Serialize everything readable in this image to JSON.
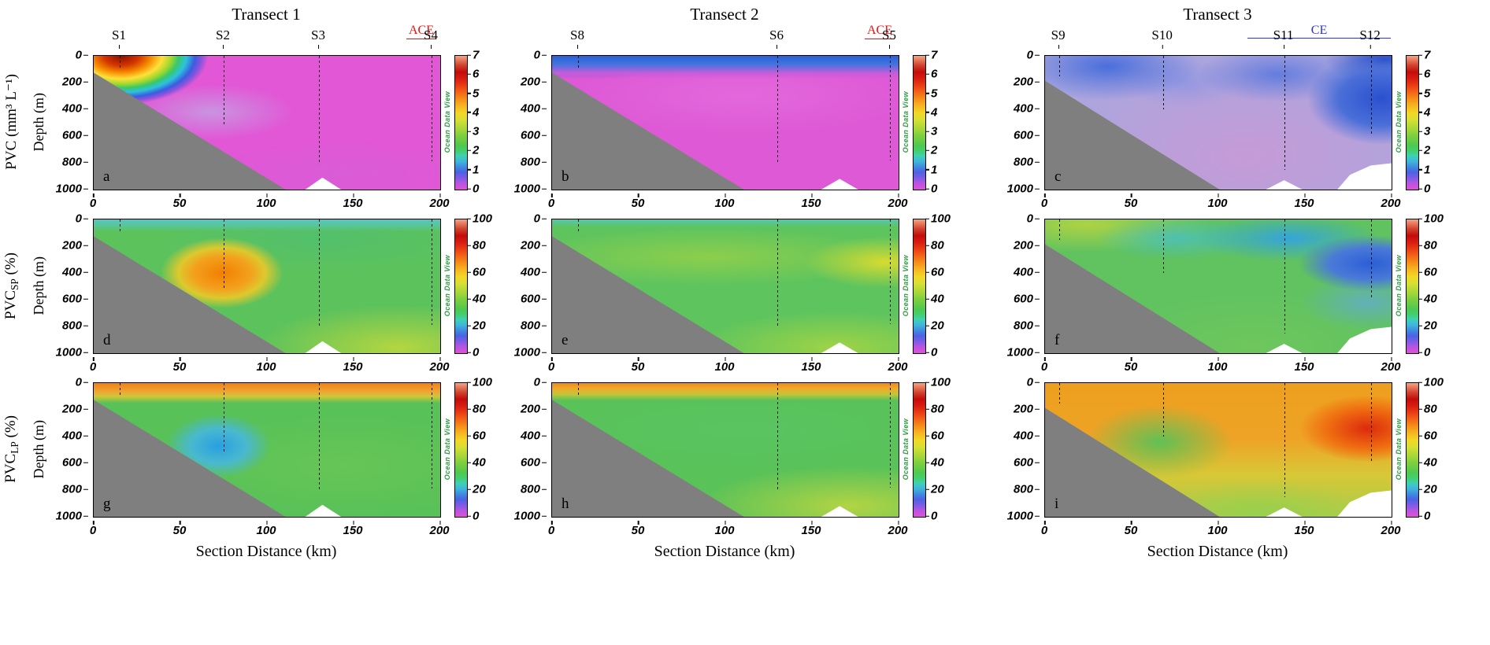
{
  "watermark": "Ocean Data View",
  "panel_letters": [
    "a",
    "b",
    "c",
    "d",
    "e",
    "f",
    "g",
    "h",
    "i"
  ],
  "axes": {
    "x_label": "Section Distance (km)",
    "x_ticks": [
      "0",
      "50",
      "100",
      "150",
      "200"
    ],
    "depth_label": "Depth (m)",
    "depth_ticks": [
      "0",
      "200",
      "400",
      "600",
      "800",
      "1000"
    ],
    "x_range_km": [
      0,
      200
    ],
    "depth_range_m": [
      0,
      1000
    ]
  },
  "rows": [
    {
      "label": "PVC (mm³ L⁻¹)",
      "colorbar_min": 0,
      "colorbar_max": 7,
      "colorbar_ticks": [
        "7",
        "6",
        "5",
        "4",
        "3",
        "2",
        "1",
        "0"
      ]
    },
    {
      "label_prefix": "PVC",
      "label_sub": "SP",
      "label_suffix": " (%)",
      "colorbar_min": 0,
      "colorbar_max": 100,
      "colorbar_ticks": [
        "100",
        "80",
        "60",
        "40",
        "20",
        "0"
      ]
    },
    {
      "label_prefix": "PVC",
      "label_sub": "LP",
      "label_suffix": " (%)",
      "colorbar_min": 0,
      "colorbar_max": 100,
      "colorbar_ticks": [
        "100",
        "80",
        "60",
        "40",
        "20",
        "0"
      ]
    }
  ],
  "columns": [
    {
      "title": "Transect 1",
      "eddy": {
        "label": "ACE",
        "color": "#ee1111"
      },
      "stations": [
        {
          "label": "S1",
          "km": 15,
          "cast_depth_m": 100
        },
        {
          "label": "S2",
          "km": 75,
          "cast_depth_m": 530
        },
        {
          "label": "S3",
          "km": 130,
          "cast_depth_m": 800
        },
        {
          "label": "S4",
          "km": 195,
          "cast_depth_m": 790
        }
      ]
    },
    {
      "title": "Transect 2",
      "eddy": {
        "label": "ACE",
        "color": "#ee1111"
      },
      "stations": [
        {
          "label": "S8",
          "km": 15,
          "cast_depth_m": 100
        },
        {
          "label": "S6",
          "km": 130,
          "cast_depth_m": 800
        },
        {
          "label": "S5",
          "km": 195,
          "cast_depth_m": 780
        }
      ]
    },
    {
      "title": "Transect 3",
      "eddy": {
        "label": "CE",
        "color": "#2a35cc"
      },
      "stations": [
        {
          "label": "S9",
          "km": 8,
          "cast_depth_m": 150
        },
        {
          "label": "S10",
          "km": 68,
          "cast_depth_m": 400
        },
        {
          "label": "S11",
          "km": 138,
          "cast_depth_m": 850
        },
        {
          "label": "S12",
          "km": 188,
          "cast_depth_m": 590
        }
      ]
    }
  ],
  "annotations": [
    {
      "text": "ACE",
      "color": "#ee1111",
      "transect": "Transect 1",
      "location": "above S4"
    },
    {
      "text": "ACE",
      "color": "#ee1111",
      "transect": "Transect 2",
      "location": "above S5"
    },
    {
      "text": "CE",
      "color": "#2a35cc",
      "transect": "Transect 3",
      "location": "spanning S11–S12"
    }
  ],
  "chart_data": {
    "type": "heatmap",
    "note": "Ocean Data View style filled-contour sections; values estimated from color field; null = below seafloor (gray mask)",
    "x_km": [
      0,
      50,
      100,
      150,
      200
    ],
    "depth_m": [
      0,
      250,
      500,
      750,
      1000
    ],
    "colormap": "ODV rainbow: magenta(low) -> blue -> cyan -> green -> yellow -> orange -> red -> pale salmon(high)",
    "panels": [
      {
        "id": "a",
        "transect": "Transect 1",
        "variable": "PVC (mm³ L⁻¹)",
        "scale": [
          0,
          7
        ],
        "values": [
          [
            5.5,
            0.8,
            0.7,
            0.7,
            0.7
          ],
          [
            null,
            0.9,
            0.6,
            0.6,
            0.6
          ],
          [
            null,
            1.1,
            0.6,
            0.6,
            0.6
          ],
          [
            null,
            null,
            0.6,
            0.6,
            0.6
          ],
          [
            null,
            null,
            null,
            0.6,
            0.6
          ]
        ],
        "features": "strong surface PVC maximum (~6) at S1 shelf; uniform low (~0.6) magenta background elsewhere"
      },
      {
        "id": "b",
        "transect": "Transect 2",
        "variable": "PVC (mm³ L⁻¹)",
        "scale": [
          0,
          7
        ],
        "values": [
          [
            2.0,
            1.5,
            1.2,
            1.0,
            1.5
          ],
          [
            null,
            0.7,
            0.7,
            0.7,
            0.8
          ],
          [
            null,
            0.6,
            0.6,
            0.6,
            0.7
          ],
          [
            null,
            null,
            0.6,
            0.6,
            0.7
          ],
          [
            null,
            null,
            null,
            0.6,
            0.6
          ]
        ],
        "features": "blue surface band (~1-2) in upper 100 m; low (~0.6) below"
      },
      {
        "id": "c",
        "transect": "Transect 3",
        "variable": "PVC (mm³ L⁻¹)",
        "scale": [
          0,
          7
        ],
        "values": [
          [
            2.2,
            1.5,
            1.0,
            1.2,
            2.2
          ],
          [
            null,
            1.6,
            0.9,
            1.0,
            2.4
          ],
          [
            null,
            1.1,
            0.8,
            0.9,
            1.8
          ],
          [
            null,
            null,
            0.8,
            0.9,
            1.1
          ],
          [
            null,
            null,
            0.8,
            0.9,
            null
          ]
        ],
        "features": "overall elevated (~1-2.5, blue) especially near S9 surface and S12 (CE core 0-600 m); lavender (~0.9) interior"
      },
      {
        "id": "d",
        "transect": "Transect 1",
        "variable": "PVC_SP (%)",
        "scale": [
          0,
          100
        ],
        "values": [
          [
            30,
            45,
            50,
            50,
            50
          ],
          [
            null,
            70,
            55,
            50,
            50
          ],
          [
            null,
            75,
            55,
            55,
            55
          ],
          [
            null,
            null,
            58,
            60,
            60
          ],
          [
            null,
            null,
            null,
            62,
            62
          ]
        ],
        "features": "cyan surface layer (~30%); orange maximum (~75%) near S2 at 300-500 m; green (~50-60%) background"
      },
      {
        "id": "e",
        "transect": "Transect 2",
        "variable": "PVC_SP (%)",
        "scale": [
          0,
          100
        ],
        "values": [
          [
            40,
            48,
            48,
            48,
            42
          ],
          [
            null,
            55,
            60,
            55,
            65
          ],
          [
            null,
            52,
            55,
            55,
            60
          ],
          [
            null,
            null,
            55,
            55,
            58
          ],
          [
            null,
            null,
            null,
            58,
            58
          ]
        ],
        "features": "green field (~50-60%); yellow-green patch (~65%) near S5 at 250-400 m"
      },
      {
        "id": "f",
        "transect": "Transect 3",
        "variable": "PVC_SP (%)",
        "scale": [
          0,
          100
        ],
        "values": [
          [
            55,
            60,
            50,
            42,
            40
          ],
          [
            null,
            42,
            48,
            30,
            25
          ],
          [
            null,
            50,
            50,
            45,
            35
          ],
          [
            null,
            null,
            50,
            50,
            45
          ],
          [
            null,
            null,
            50,
            50,
            null
          ]
        ],
        "features": "yellow-green surface at S9-S10; blue minima (~25-35%) near S11 at ~150 m and S12 at 250-500 m"
      },
      {
        "id": "g",
        "transect": "Transect 1",
        "variable": "PVC_LP (%)",
        "scale": [
          0,
          100
        ],
        "values": [
          [
            75,
            75,
            72,
            72,
            70
          ],
          [
            null,
            40,
            46,
            48,
            48
          ],
          [
            null,
            25,
            45,
            45,
            45
          ],
          [
            null,
            null,
            46,
            45,
            45
          ],
          [
            null,
            null,
            null,
            45,
            45
          ]
        ],
        "features": "orange surface band (~70-75%); blue minimum (~25%) near S2 at 400-550 m; green (~45%) interior"
      },
      {
        "id": "h",
        "transect": "Transect 2",
        "variable": "PVC_LP (%)",
        "scale": [
          0,
          100
        ],
        "values": [
          [
            70,
            72,
            72,
            72,
            75
          ],
          [
            null,
            45,
            42,
            45,
            40
          ],
          [
            null,
            45,
            45,
            45,
            42
          ],
          [
            null,
            null,
            46,
            48,
            50
          ],
          [
            null,
            null,
            null,
            50,
            52
          ]
        ],
        "features": "thin orange surface band (~70-75%); green (~45%) interior; yellow-green near bottom right"
      },
      {
        "id": "i",
        "transect": "Transect 3",
        "variable": "PVC_LP (%)",
        "scale": [
          0,
          100
        ],
        "values": [
          [
            55,
            62,
            66,
            68,
            65
          ],
          [
            null,
            60,
            70,
            70,
            82
          ],
          [
            null,
            45,
            60,
            65,
            78
          ],
          [
            null,
            null,
            55,
            58,
            62
          ],
          [
            null,
            null,
            55,
            55,
            null
          ]
        ],
        "features": "orange field (~60-70%); red maximum (~80-85%) near S12 at 250-450 m (CE); green patch (~45%) near S10 at 300-500 m"
      }
    ]
  }
}
